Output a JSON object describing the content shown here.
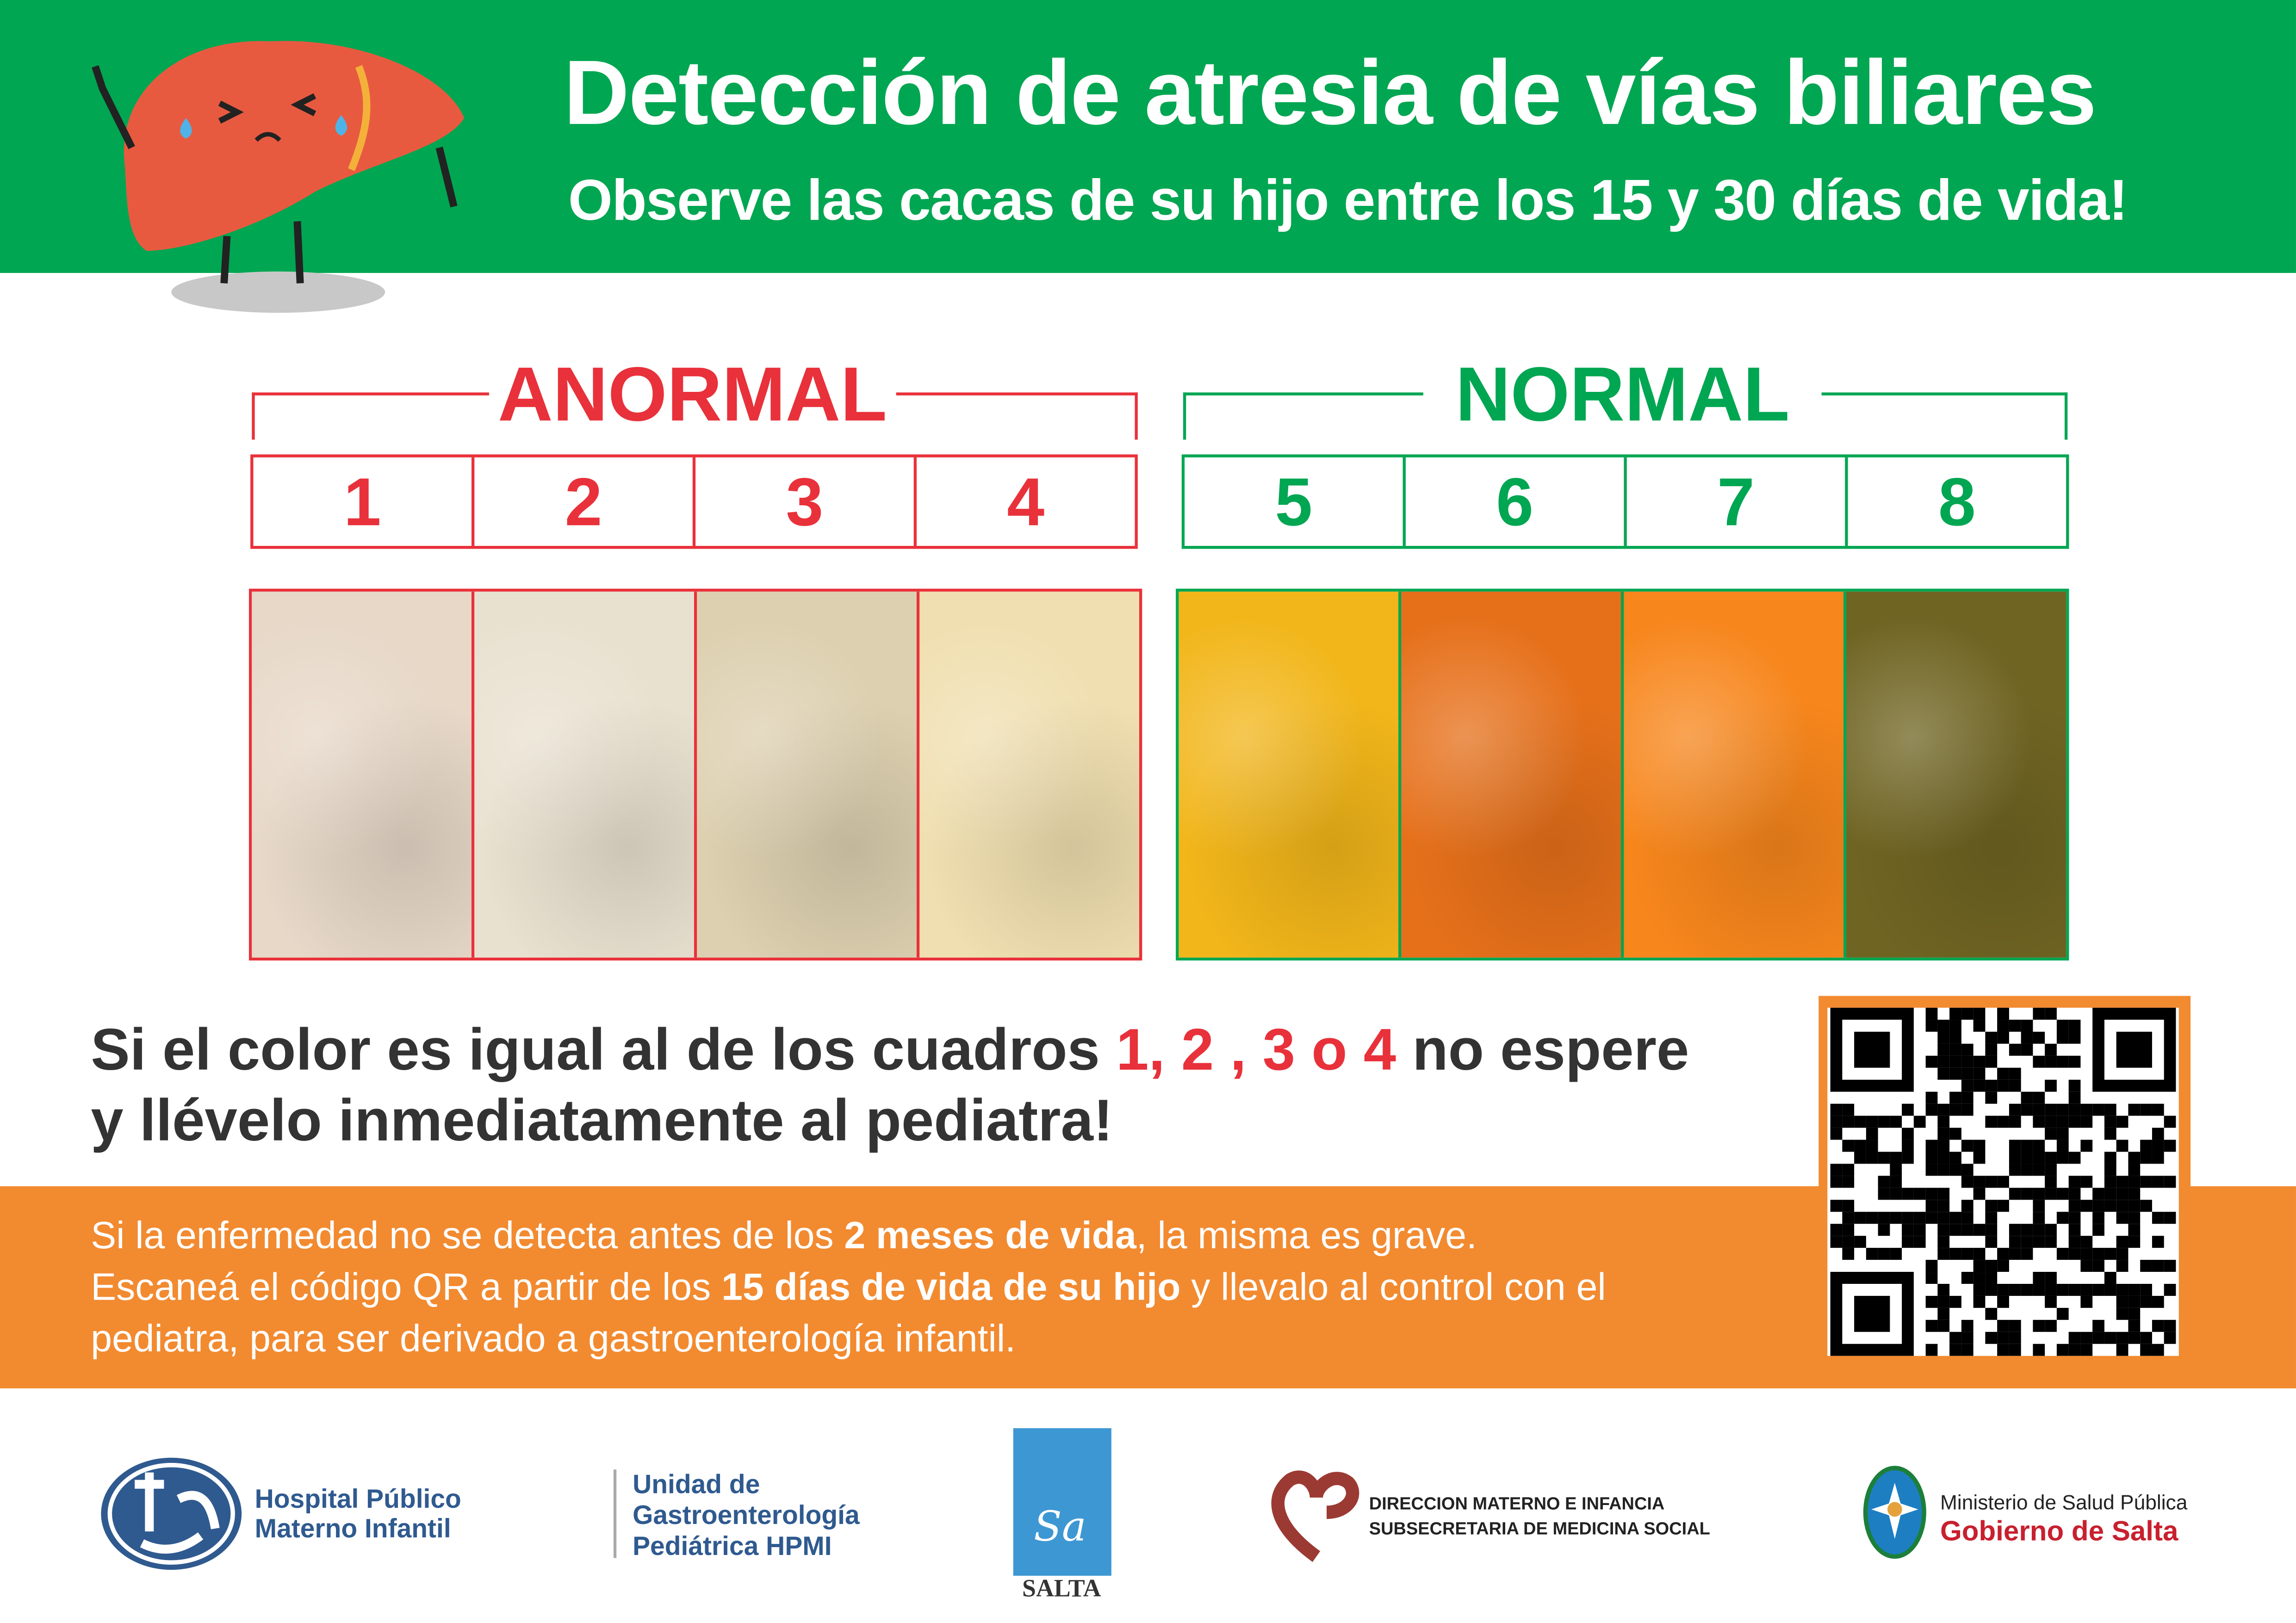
{
  "header": {
    "title": "Detección de atresia de vías biliares",
    "subtitle": "Observe las cacas de su hijo entre los 15 y 30 días de vida!",
    "mascot_icon": "crying-liver-mascot"
  },
  "colors": {
    "green": "#00a651",
    "red": "#e8313a",
    "orange": "#f28a30",
    "dark_text": "#333333"
  },
  "abnormal": {
    "label": "ANORMAL",
    "numbers": [
      "1",
      "2",
      "3",
      "4"
    ],
    "swatches": [
      "#e7d8c8",
      "#e9e1d0",
      "#ddd0b0",
      "#f0dfb0"
    ]
  },
  "normal": {
    "label": "NORMAL",
    "numbers": [
      "5",
      "6",
      "7",
      "8"
    ],
    "swatches": [
      "#f2b61a",
      "#e6701a",
      "#f7861c",
      "#6f6422"
    ]
  },
  "message": {
    "part1": "Si el color es igual al de los cuadros ",
    "highlight": "1, 2 , 3 o 4",
    "part2": " no espere",
    "line2": "y llévelo inmediatamente al pediatra!"
  },
  "info": {
    "l1a": "Si la enfermedad no se detecta antes de los ",
    "l1b": "2 meses de vida",
    "l1c": ", la misma es grave.",
    "l2a": "Escaneá el código QR a partir de los ",
    "l2b": "15 días de vida de su hijo",
    "l2c": " y llevalo al control con el",
    "l3": "pediatra, para ser derivado a gastroenterología infantil."
  },
  "qr_icon": "qr-code",
  "footer": {
    "hpmi": [
      "Hospital Público",
      "Materno Infantil"
    ],
    "unidad": [
      "Unidad de",
      "Gastroenterología",
      "Pediátrica HPMI"
    ],
    "salta": "SALTA",
    "salta_monogram": "Sa",
    "direccion": [
      "DIRECCION MATERNO E INFANCIA",
      "SUBSECRETARIA DE MEDICINA SOCIAL"
    ],
    "ministerio": "Ministerio de Salud Pública",
    "gobierno": "Gobierno de Salta"
  }
}
